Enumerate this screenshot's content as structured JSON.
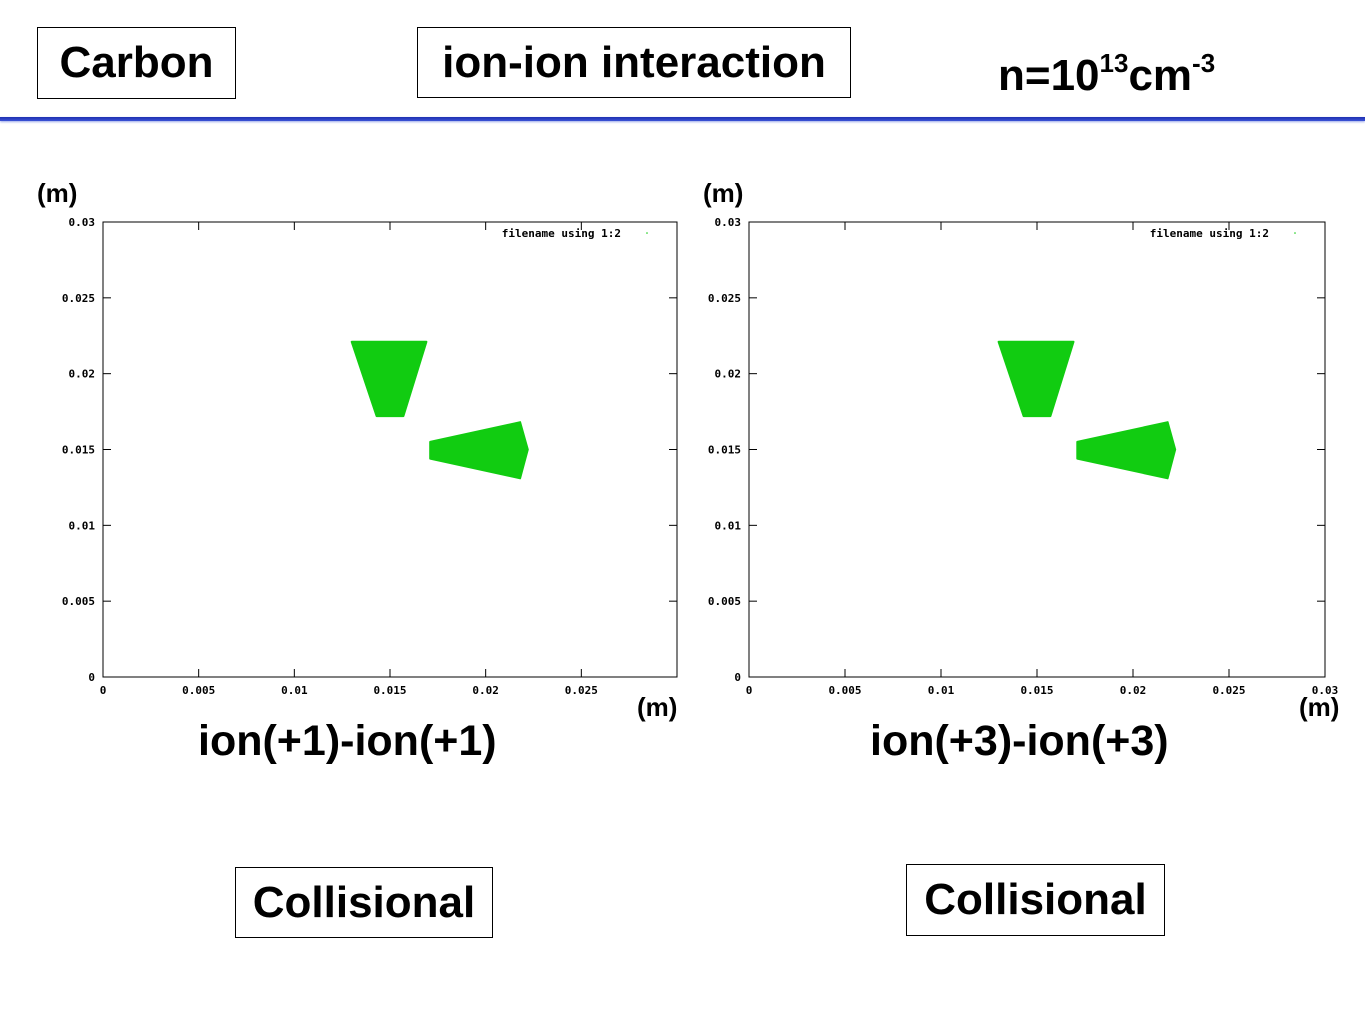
{
  "header": {
    "element": "Carbon",
    "topic": "ion-ion interaction",
    "density_prefix": "n=10",
    "density_exp": "13",
    "density_unit": "cm",
    "density_unit_exp": "-3"
  },
  "colors": {
    "particles": "#11cc11",
    "divider": "#1f2fb0"
  },
  "chart_data": [
    {
      "type": "scatter",
      "xlabel": "(m)",
      "ylabel": "(m)",
      "xlim": [
        0,
        0.03
      ],
      "ylim": [
        0,
        0.03
      ],
      "x_ticks": [
        "0",
        "0.005",
        "0.01",
        "0.015",
        "0.02",
        "0.025"
      ],
      "y_ticks": [
        "0",
        "0.005",
        "0.01",
        "0.015",
        "0.02",
        "0.025",
        "0.03"
      ],
      "legend": "filename using 1:2",
      "legend_position": "top-right",
      "grid": false,
      "series": [
        {
          "name": "filename using 1:2",
          "regions": [
            [
              [
                0.013,
                0.0221
              ],
              [
                0.0169,
                0.0221
              ],
              [
                0.0157,
                0.0172
              ],
              [
                0.0143,
                0.0172
              ]
            ],
            [
              [
                0.0171,
                0.0155
              ],
              [
                0.0218,
                0.0168
              ],
              [
                0.0222,
                0.015
              ],
              [
                0.0218,
                0.0131
              ],
              [
                0.0171,
                0.0144
              ]
            ]
          ]
        }
      ],
      "caption": "ion(+1)-ion(+1)",
      "label": "Collisional"
    },
    {
      "type": "scatter",
      "xlabel": "(m)",
      "ylabel": "(m)",
      "xlim": [
        0,
        0.03
      ],
      "ylim": [
        0,
        0.03
      ],
      "x_ticks": [
        "0",
        "0.005",
        "0.01",
        "0.015",
        "0.02",
        "0.025",
        "0.03"
      ],
      "y_ticks": [
        "0",
        "0.005",
        "0.01",
        "0.015",
        "0.02",
        "0.025",
        "0.03"
      ],
      "legend": "filename using 1:2",
      "legend_position": "top-right",
      "grid": false,
      "series": [
        {
          "name": "filename using 1:2",
          "regions": [
            [
              [
                0.013,
                0.0221
              ],
              [
                0.0169,
                0.0221
              ],
              [
                0.0157,
                0.0172
              ],
              [
                0.0143,
                0.0172
              ]
            ],
            [
              [
                0.0171,
                0.0155
              ],
              [
                0.0218,
                0.0168
              ],
              [
                0.0222,
                0.015
              ],
              [
                0.0218,
                0.0131
              ],
              [
                0.0171,
                0.0144
              ]
            ]
          ]
        }
      ],
      "caption": "ion(+3)-ion(+3)",
      "label": "Collisional"
    }
  ]
}
